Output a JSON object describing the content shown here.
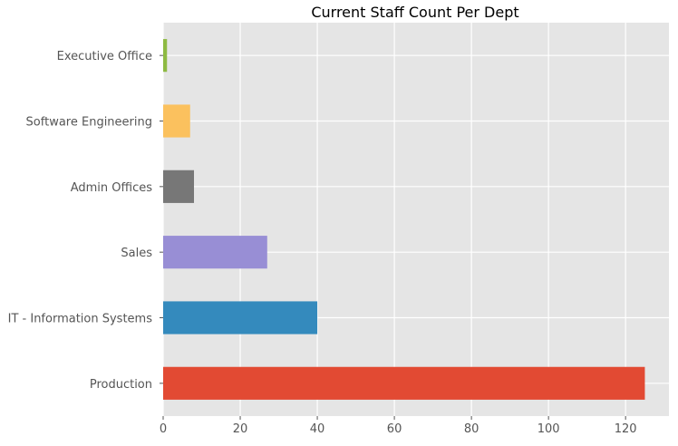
{
  "chart_data": {
    "type": "bar",
    "orientation": "horizontal",
    "title": "Current Staff Count Per Dept",
    "xlabel": "",
    "ylabel": "",
    "categories": [
      "Production",
      "IT - Information Systems",
      "Sales",
      "Admin Offices",
      "Software Engineering",
      "Executive Office"
    ],
    "values": [
      125,
      40,
      27,
      8,
      7,
      1
    ],
    "colors": [
      "#E24A33",
      "#348ABD",
      "#988ED5",
      "#777777",
      "#FBC15E",
      "#8EBA42"
    ],
    "xlim": [
      0,
      131.25
    ],
    "xticks": [
      0,
      20,
      40,
      60,
      80,
      100,
      120
    ],
    "grid": true,
    "style": "ggplot",
    "background_color": "#E5E5E5",
    "grid_color": "#FFFFFF"
  }
}
